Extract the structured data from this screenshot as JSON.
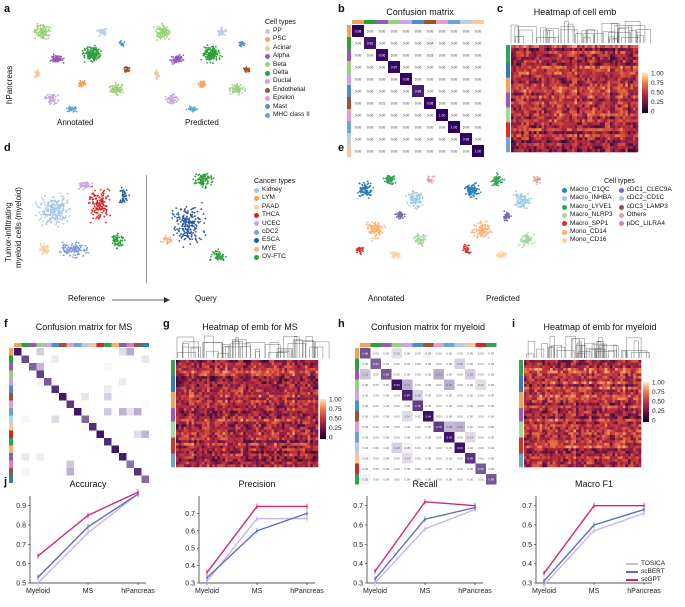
{
  "panels": {
    "a": {
      "letter": "a",
      "row_label": "hPancreas",
      "left_caption": "Annotated",
      "right_caption": "Predicted",
      "legend_title": "Cell types",
      "legend": [
        {
          "label": "PP",
          "color": "#b9cde6"
        },
        {
          "label": "PSC",
          "color": "#f4a259"
        },
        {
          "label": "Acinar",
          "color": "#f3c9a0"
        },
        {
          "label": "Alpha",
          "color": "#9b59b6"
        },
        {
          "label": "Beta",
          "color": "#9bd07a"
        },
        {
          "label": "Delta",
          "color": "#2e9e3a"
        },
        {
          "label": "Ductal",
          "color": "#c9a6e4"
        },
        {
          "label": "Endothelial",
          "color": "#a0522d"
        },
        {
          "label": "Epsilon",
          "color": "#e89ad2"
        },
        {
          "label": "Mast",
          "color": "#4f8fcf"
        },
        {
          "label": "MHC class II",
          "color": "#6aa5d8"
        }
      ]
    },
    "b": {
      "letter": "b",
      "title": "Confusion matrix"
    },
    "c": {
      "letter": "c",
      "title": "Heatmap of cell emb",
      "scale": [
        "1.00",
        "0.75",
        "0.50",
        "0.25",
        "0"
      ]
    },
    "d": {
      "letter": "d",
      "row_label_line1": "Tumor-infiltrating",
      "row_label_line2": "myeloid cells (myeloid)",
      "left_caption": "Reference",
      "right_caption": "Query",
      "legend_title": "Cancer types",
      "legend": [
        {
          "label": "Kidney",
          "color": "#a7c7e7"
        },
        {
          "label": "LYM",
          "color": "#f4a259"
        },
        {
          "label": "PAAD",
          "color": "#f6d19b"
        },
        {
          "label": "THCA",
          "color": "#d62728"
        },
        {
          "label": "UCEC",
          "color": "#c9a6e4"
        },
        {
          "label": "cDC2",
          "color": "#7f9fd8"
        },
        {
          "label": "ESCA",
          "color": "#2c5aa0"
        },
        {
          "label": "MYE",
          "color": "#f3b58a"
        },
        {
          "label": "OV-FTC",
          "color": "#2e9e3a"
        }
      ]
    },
    "e": {
      "letter": "e",
      "left_caption": "Annotated",
      "right_caption": "Predicted",
      "legend_title": "Cell types",
      "legend_col1": [
        {
          "label": "Macro_C1QC",
          "color": "#2c7fb8"
        },
        {
          "label": "Macro_INHBA",
          "color": "#9ecae1"
        },
        {
          "label": "Macro_LYVE1",
          "color": "#31a354"
        },
        {
          "label": "Macro_NLRP3",
          "color": "#a1d99b"
        },
        {
          "label": "Macro_SPP1",
          "color": "#de2d26"
        },
        {
          "label": "Mono_CD14",
          "color": "#fdae6b"
        },
        {
          "label": "Mono_CD16",
          "color": "#fdd0a2"
        }
      ],
      "legend_col2": [
        {
          "label": "cDC1_CLEC9A",
          "color": "#756bb1"
        },
        {
          "label": "cDC2_CD1C",
          "color": "#bcbddc"
        },
        {
          "label": "cDC3_LAMP3",
          "color": "#8c564b"
        },
        {
          "label": "Others",
          "color": "#d6a3a0"
        },
        {
          "label": "pDC_LILRA4",
          "color": "#e377c2"
        }
      ]
    },
    "f": {
      "letter": "f",
      "title": "Confusion matrix for MS"
    },
    "g": {
      "letter": "g",
      "title": "Heatmap of emb for MS",
      "scale": [
        "1.00",
        "0.75",
        "0.50",
        "0.25",
        "0"
      ]
    },
    "h": {
      "letter": "h",
      "title": "Confusion matrix for myeloid"
    },
    "i": {
      "letter": "i",
      "title": "Heatmap of emb for myeloid",
      "scale": [
        "1.00",
        "0.75",
        "0.50",
        "0.25",
        "0"
      ]
    },
    "j": {
      "letter": "j"
    }
  },
  "chart_data": [
    {
      "type": "line",
      "title": "Accuracy",
      "categories": [
        "Myeloid",
        "MS",
        "hPancreas"
      ],
      "ylim": [
        0.5,
        0.95
      ],
      "yticks": [
        "0.5",
        "0.6",
        "0.7",
        "0.8",
        "0.9"
      ],
      "series": [
        {
          "name": "TOSICA",
          "values": [
            0.5,
            0.76,
            0.96
          ],
          "color": "#c8b6e2"
        },
        {
          "name": "scBERT",
          "values": [
            0.53,
            0.79,
            0.96
          ],
          "color": "#5b6ec2"
        },
        {
          "name": "scGPT",
          "values": [
            0.64,
            0.85,
            0.97
          ],
          "color": "#d1287d"
        }
      ]
    },
    {
      "type": "line",
      "title": "Precision",
      "categories": [
        "Myeloid",
        "MS",
        "hPancreas"
      ],
      "ylim": [
        0.3,
        0.8
      ],
      "yticks": [
        "0.3",
        "0.4",
        "0.5",
        "0.6",
        "0.7"
      ],
      "series": [
        {
          "name": "TOSICA",
          "values": [
            0.31,
            0.67,
            0.67
          ],
          "color": "#c8b6e2"
        },
        {
          "name": "scBERT",
          "values": [
            0.33,
            0.6,
            0.7
          ],
          "color": "#5b6ec2"
        },
        {
          "name": "scGPT",
          "values": [
            0.36,
            0.74,
            0.74
          ],
          "color": "#d1287d"
        }
      ]
    },
    {
      "type": "line",
      "title": "Recall",
      "categories": [
        "Myeloid",
        "MS",
        "hPancreas"
      ],
      "ylim": [
        0.3,
        0.75
      ],
      "yticks": [
        "0.3",
        "0.4",
        "0.5",
        "0.6",
        "0.7"
      ],
      "series": [
        {
          "name": "TOSICA",
          "values": [
            0.3,
            0.58,
            0.68
          ],
          "color": "#c8b6e2"
        },
        {
          "name": "scBERT",
          "values": [
            0.32,
            0.63,
            0.69
          ],
          "color": "#5b6ec2"
        },
        {
          "name": "scGPT",
          "values": [
            0.36,
            0.72,
            0.7
          ],
          "color": "#d1287d"
        }
      ]
    },
    {
      "type": "line",
      "title": "Macro F1",
      "categories": [
        "Myeloid",
        "MS",
        "hPancreas"
      ],
      "ylim": [
        0.3,
        0.75
      ],
      "yticks": [
        "0.3",
        "0.4",
        "0.5",
        "0.6",
        "0.7"
      ],
      "series": [
        {
          "name": "TOSICA",
          "values": [
            0.29,
            0.57,
            0.66
          ],
          "color": "#c8b6e2"
        },
        {
          "name": "scBERT",
          "values": [
            0.31,
            0.6,
            0.68
          ],
          "color": "#5b6ec2"
        },
        {
          "name": "scGPT",
          "values": [
            0.35,
            0.7,
            0.7
          ],
          "color": "#d1287d"
        }
      ]
    }
  ],
  "legend_j": [
    {
      "name": "TOSICA",
      "color": "#c8b6e2"
    },
    {
      "name": "scBERT",
      "color": "#5b6ec2"
    },
    {
      "name": "scGPT",
      "color": "#d1287d"
    }
  ],
  "confusion_b": {
    "rows": 11,
    "cols": 11,
    "label_color": "#333",
    "values": [
      [
        "0.98",
        "0.00",
        "0.00",
        "0.00",
        "0.00",
        "0.00",
        "0.00",
        "0.00",
        "0.00",
        "0.00",
        "0.00"
      ],
      [
        "0.00",
        "0.92",
        "0.00",
        "0.00",
        "0.00",
        "0.00",
        "0.04",
        "0.00",
        "0.00",
        "0.00",
        "0.00"
      ],
      [
        "0.00",
        "0.00",
        "0.96",
        "0.00",
        "0.00",
        "0.00",
        "0.03",
        "0.00",
        "0.00",
        "0.00",
        "0.00"
      ],
      [
        "0.00",
        "0.00",
        "0.00",
        "0.97",
        "0.00",
        "0.00",
        "0.00",
        "0.00",
        "0.00",
        "0.00",
        "0.00"
      ],
      [
        "0.00",
        "0.00",
        "0.00",
        "0.00",
        "0.98",
        "0.00",
        "0.00",
        "0.00",
        "0.00",
        "0.00",
        "0.00"
      ],
      [
        "0.00",
        "0.00",
        "0.00",
        "0.00",
        "0.00",
        "0.88",
        "0.00",
        "0.00",
        "0.00",
        "0.00",
        "0.00"
      ],
      [
        "0.00",
        "0.00",
        "0.01",
        "0.00",
        "0.00",
        "0.00",
        "0.98",
        "0.00",
        "0.00",
        "0.00",
        "0.00"
      ],
      [
        "0.00",
        "0.00",
        "0.00",
        "0.00",
        "0.00",
        "0.00",
        "0.00",
        "1.00",
        "0.00",
        "0.00",
        "0.00"
      ],
      [
        "0.00",
        "0.00",
        "0.00",
        "0.00",
        "0.00",
        "0.00",
        "0.00",
        "0.00",
        "1.00",
        "0.00",
        "0.00"
      ],
      [
        "0.00",
        "0.00",
        "0.00",
        "0.00",
        "0.00",
        "0.00",
        "0.00",
        "0.00",
        "0.00",
        "0.98",
        "0.00"
      ],
      [
        "0.00",
        "0.00",
        "0.00",
        "0.00",
        "0.00",
        "0.00",
        "0.00",
        "0.00",
        "0.00",
        "0.00",
        "1.00"
      ]
    ]
  }
}
